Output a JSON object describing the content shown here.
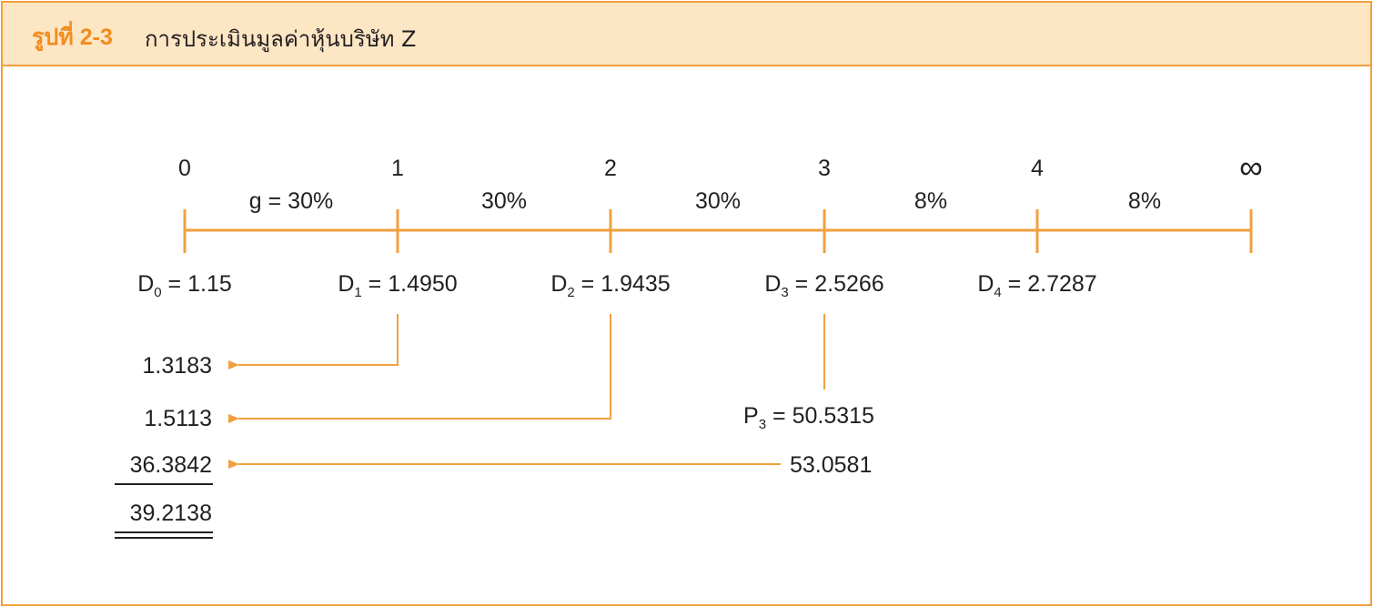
{
  "header": {
    "figure_number": "รูปที่ 2-3",
    "title": "การประเมินมูลค่าหุ้นบริษัท Z"
  },
  "timeline": {
    "periods": [
      "0",
      "1",
      "2",
      "3",
      "4",
      "∞"
    ],
    "growth_rates": [
      "g = 30%",
      "30%",
      "30%",
      "8%",
      "8%"
    ],
    "dividends": [
      {
        "label": "D",
        "sub": "0",
        "value": "1.15"
      },
      {
        "label": "D",
        "sub": "1",
        "value": "1.4950"
      },
      {
        "label": "D",
        "sub": "2",
        "value": "1.9435"
      },
      {
        "label": "D",
        "sub": "3",
        "value": "2.5266"
      },
      {
        "label": "D",
        "sub": "4",
        "value": "2.7287"
      }
    ]
  },
  "present_values": [
    "1.3183",
    "1.5113",
    "36.3842",
    "39.2138"
  ],
  "terminal": {
    "p3_label": "P",
    "p3_sub": "3",
    "p3_value": "50.5315",
    "total_value": "53.0581"
  },
  "colors": {
    "accent": "#f0a040",
    "header_bg": "#fde6c4",
    "figure_number": "#f28c1e",
    "text": "#231f20"
  }
}
